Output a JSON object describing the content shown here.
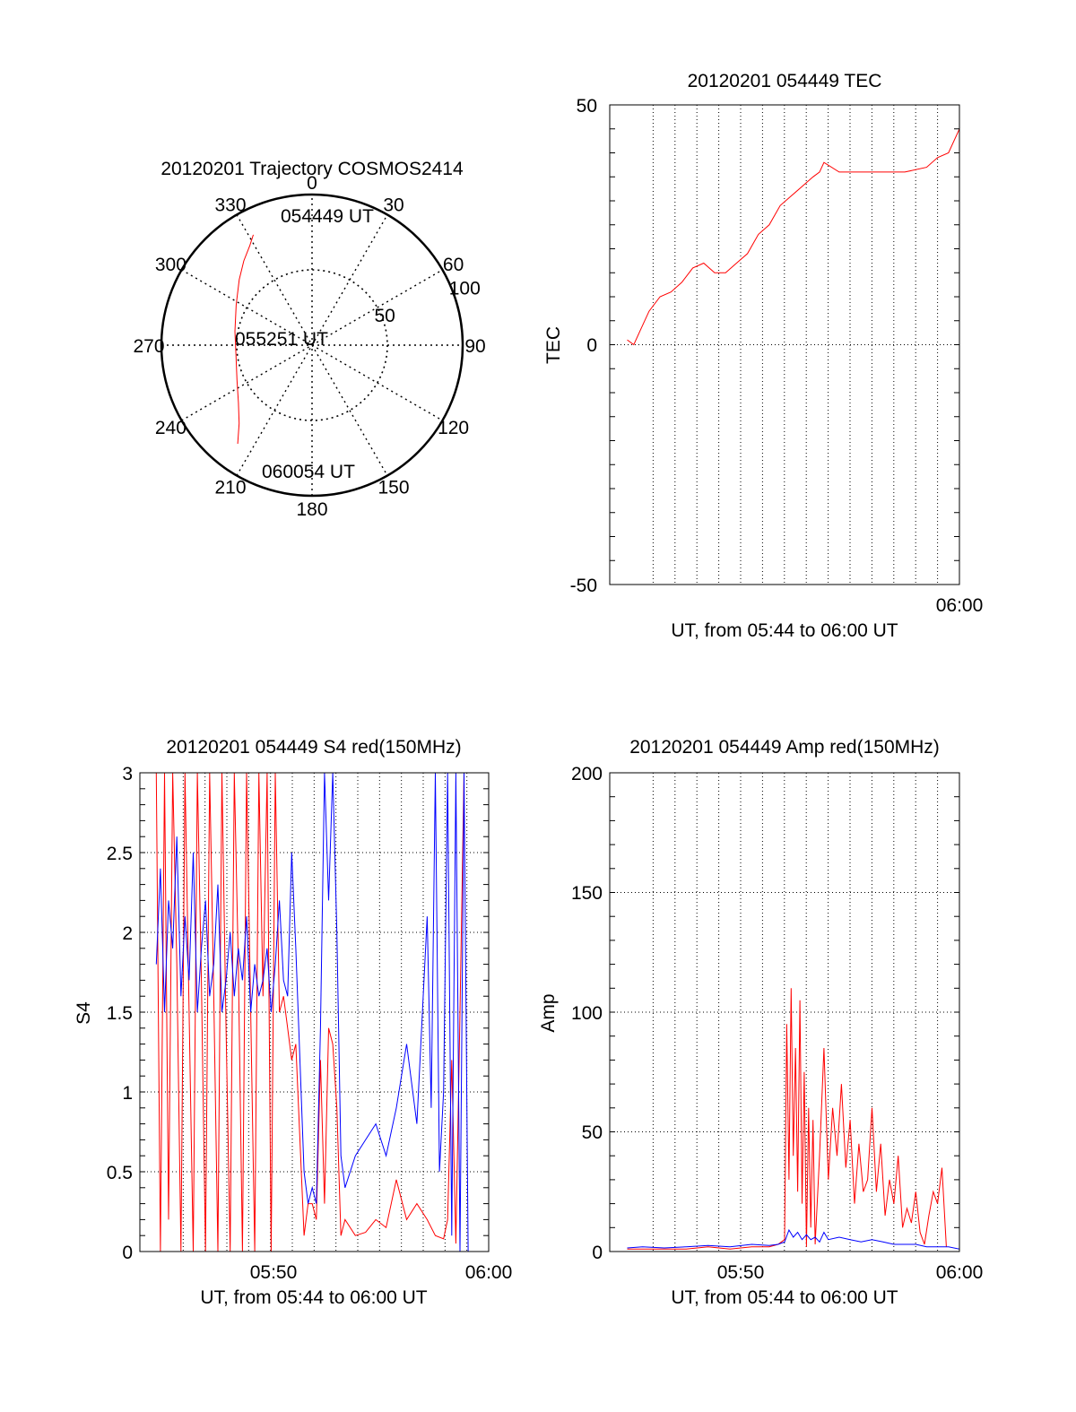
{
  "chart_data": [
    {
      "id": "trajectory",
      "type": "polar",
      "title": "20120201 Trajectory COSMOS2414",
      "azimuth_labels": [
        "0",
        "30",
        "60",
        "90",
        "120",
        "150",
        "180",
        "210",
        "240",
        "270",
        "300",
        "330"
      ],
      "radial_ticks": [
        50,
        100
      ],
      "radial_labels": [
        "50",
        "100"
      ],
      "grid": true,
      "track_color": "#ff0000",
      "track": [
        {
          "az": 332,
          "r": 83
        },
        {
          "az": 328,
          "r": 78
        },
        {
          "az": 321,
          "r": 72
        },
        {
          "az": 312,
          "r": 65
        },
        {
          "az": 298,
          "r": 57
        },
        {
          "az": 280,
          "r": 52
        },
        {
          "az": 262,
          "r": 51
        },
        {
          "az": 245,
          "r": 55
        },
        {
          "az": 232,
          "r": 62
        },
        {
          "az": 223,
          "r": 71
        },
        {
          "az": 217,
          "r": 82
        }
      ],
      "annotations": [
        "054449 UT",
        "055251 UT",
        "060054 UT"
      ]
    },
    {
      "id": "tec",
      "type": "line",
      "title": "20120201 054449 TEC",
      "xlabel": "UT, from 05:44 to 06:00 UT",
      "ylabel": "TEC",
      "xlim": [
        344,
        360
      ],
      "ylim": [
        -50,
        50
      ],
      "yticks": [
        "-50",
        "0",
        "50"
      ],
      "xticks": [
        {
          "x": 360,
          "label": "06:00"
        }
      ],
      "grid": true,
      "series": [
        {
          "color": "#ff0000",
          "x": [
            344.8,
            345.1,
            345.4,
            345.8,
            346.3,
            346.8,
            347.3,
            347.8,
            348.3,
            348.8,
            349.3,
            349.8,
            350.3,
            350.8,
            351.3,
            351.8,
            352.3,
            352.8,
            353.3,
            353.6,
            353.8,
            354.5,
            355.5,
            356.5,
            357.5,
            358.5,
            359.0,
            359.5,
            360.0
          ],
          "y": [
            1,
            0,
            3,
            7,
            10,
            11,
            13,
            16,
            17,
            15,
            15,
            17,
            19,
            23,
            25,
            29,
            31,
            33,
            35,
            36,
            38,
            36,
            36,
            36,
            36,
            37,
            39,
            40,
            45
          ]
        }
      ]
    },
    {
      "id": "s4",
      "type": "line",
      "title": "20120201 054449 S4 red(150MHz)",
      "xlabel": "UT, from 05:44 to 06:00 UT",
      "ylabel": "S4",
      "xlim": [
        344,
        361
      ],
      "ylim": [
        0,
        3
      ],
      "yticks": [
        "0",
        "0.5",
        "1",
        "1.5",
        "2",
        "2.5",
        "3"
      ],
      "xticks": [
        {
          "x": 350,
          "label": "05:50"
        },
        {
          "x": 360,
          "label": "06:00"
        }
      ],
      "grid": true,
      "series": [
        {
          "color": "#ff0000",
          "x": [
            344.8,
            345.0,
            345.2,
            345.4,
            345.6,
            345.8,
            346.0,
            346.2,
            346.4,
            346.6,
            346.8,
            347.0,
            347.2,
            347.4,
            347.6,
            347.8,
            348.0,
            348.2,
            348.4,
            348.6,
            348.8,
            349.0,
            349.2,
            349.4,
            349.6,
            349.8,
            350.0,
            350.2,
            350.4,
            350.6,
            350.8,
            351.0,
            351.2,
            351.4,
            351.6,
            351.8,
            352.0,
            352.2,
            352.4,
            352.6,
            352.8,
            353.0,
            353.2,
            353.4,
            353.6,
            353.8,
            354.0,
            354.5,
            355.0,
            355.5,
            356.0,
            356.5,
            357.0,
            357.5,
            358.0,
            358.4,
            358.8,
            359.0,
            359.2,
            359.4,
            359.6,
            359.8
          ],
          "y": [
            3.0,
            0.0,
            3.0,
            0.2,
            3.0,
            1.8,
            0.0,
            3.0,
            1.5,
            0.0,
            3.0,
            1.7,
            0.0,
            3.0,
            1.6,
            0.0,
            3.0,
            1.4,
            0.0,
            3.0,
            1.8,
            0.0,
            3.0,
            1.5,
            0.0,
            3.0,
            1.6,
            3.0,
            0.0,
            3.0,
            1.5,
            1.6,
            1.4,
            1.2,
            1.3,
            0.7,
            0.1,
            0.3,
            0.3,
            0.2,
            1.2,
            0.3,
            1.4,
            1.3,
            0.9,
            0.1,
            0.2,
            0.1,
            0.12,
            0.2,
            0.15,
            0.45,
            0.2,
            0.3,
            0.2,
            0.1,
            0.08,
            0.2,
            1.2,
            0.05,
            1.5,
            3.0
          ]
        },
        {
          "color": "#0000ff",
          "x": [
            344.8,
            345.0,
            345.2,
            345.4,
            345.6,
            345.8,
            346.0,
            346.2,
            346.4,
            346.6,
            346.8,
            347.0,
            347.2,
            347.4,
            347.6,
            347.8,
            348.0,
            348.2,
            348.4,
            348.6,
            348.8,
            349.0,
            349.2,
            349.4,
            349.6,
            349.8,
            350.0,
            350.2,
            350.4,
            350.6,
            350.8,
            351.0,
            351.2,
            351.4,
            351.6,
            351.8,
            352.0,
            352.2,
            352.4,
            352.6,
            352.8,
            353.0,
            353.2,
            353.4,
            353.6,
            353.8,
            354.0,
            354.5,
            355.0,
            355.5,
            356.0,
            356.5,
            357.0,
            357.5,
            358.0,
            358.2,
            358.4,
            358.6,
            358.8,
            359.0,
            359.2,
            359.4,
            359.6,
            359.8,
            360.0
          ],
          "y": [
            1.8,
            2.4,
            1.5,
            2.2,
            1.9,
            2.6,
            1.6,
            2.1,
            1.7,
            2.5,
            1.5,
            1.9,
            2.2,
            1.6,
            1.8,
            2.3,
            1.5,
            1.7,
            2.0,
            1.6,
            1.9,
            1.7,
            2.1,
            1.5,
            1.8,
            1.6,
            1.7,
            1.9,
            1.5,
            1.8,
            2.2,
            1.7,
            1.6,
            2.5,
            1.9,
            1.2,
            0.5,
            0.3,
            0.4,
            0.3,
            1.4,
            3.0,
            2.2,
            3.0,
            2.0,
            0.6,
            0.4,
            0.6,
            0.7,
            0.8,
            0.6,
            0.9,
            1.3,
            0.8,
            2.1,
            0.9,
            3.0,
            0.5,
            1.0,
            3.0,
            0.1,
            3.0,
            0.0,
            3.0,
            0.0
          ]
        }
      ]
    },
    {
      "id": "amp",
      "type": "line",
      "title": "20120201 054449 Amp red(150MHz)",
      "xlabel": "UT, from 05:44 to 06:00 UT",
      "ylabel": "Amp",
      "xlim": [
        344,
        360
      ],
      "ylim": [
        0,
        200
      ],
      "yticks": [
        "0",
        "50",
        "100",
        "150",
        "200"
      ],
      "xticks": [
        {
          "x": 350,
          "label": "05:50"
        },
        {
          "x": 360,
          "label": "06:00"
        }
      ],
      "grid": true,
      "series": [
        {
          "color": "#ff0000",
          "x": [
            344.8,
            345.5,
            346.5,
            347.5,
            348.5,
            349.5,
            350.5,
            351.3,
            351.7,
            352.0,
            352.1,
            352.2,
            352.3,
            352.4,
            352.5,
            352.6,
            352.7,
            352.8,
            352.9,
            353.0,
            353.1,
            353.2,
            353.3,
            353.4,
            353.6,
            353.8,
            354.0,
            354.2,
            354.4,
            354.6,
            354.8,
            355.0,
            355.2,
            355.4,
            355.6,
            355.8,
            356.0,
            356.2,
            356.4,
            356.6,
            356.8,
            357.0,
            357.2,
            357.4,
            357.6,
            357.8,
            358.0,
            358.2,
            358.4,
            358.6,
            358.8,
            359.0,
            359.2,
            359.4
          ],
          "y": [
            1,
            1,
            1,
            1,
            2,
            1,
            2,
            2,
            3,
            5,
            95,
            30,
            110,
            40,
            85,
            25,
            105,
            20,
            75,
            2,
            60,
            10,
            55,
            3,
            40,
            85,
            30,
            60,
            40,
            70,
            35,
            55,
            20,
            45,
            25,
            30,
            60,
            25,
            45,
            15,
            30,
            20,
            40,
            10,
            18,
            12,
            25,
            8,
            3,
            15,
            25,
            20,
            35,
            2
          ]
        },
        {
          "color": "#0000ff",
          "x": [
            344.8,
            345.5,
            346.5,
            347.5,
            348.5,
            349.5,
            350.5,
            351.3,
            351.7,
            352.0,
            352.2,
            352.4,
            352.6,
            352.8,
            353.0,
            353.2,
            353.4,
            353.6,
            353.8,
            354.0,
            354.5,
            355.0,
            355.5,
            356.0,
            356.5,
            357.0,
            357.5,
            358.0,
            358.5,
            359.0,
            359.5,
            360.0
          ],
          "y": [
            1.5,
            2,
            1.5,
            2,
            2.5,
            2,
            3,
            2.5,
            3,
            4,
            9,
            6,
            8,
            5,
            7,
            5,
            6,
            4,
            8,
            5,
            6,
            5,
            4,
            5,
            4,
            3,
            3,
            3,
            2,
            2,
            2,
            1
          ]
        }
      ]
    }
  ]
}
